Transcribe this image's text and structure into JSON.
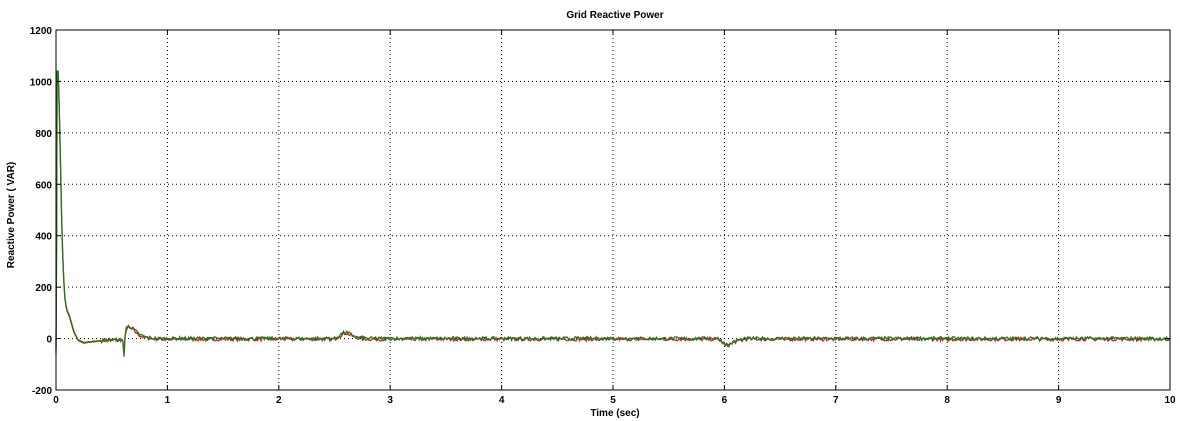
{
  "chart_data": {
    "type": "line",
    "title": "Grid Reactive Power",
    "xlabel": "Time (sec)",
    "ylabel": "Reactive Power ( VAR)",
    "xlim": [
      0,
      10
    ],
    "ylim": [
      -200,
      1200
    ],
    "xticks": [
      0,
      1,
      2,
      3,
      4,
      5,
      6,
      7,
      8,
      9,
      10
    ],
    "yticks": [
      -200,
      0,
      200,
      400,
      600,
      800,
      1000,
      1200
    ],
    "grid": true,
    "legend": "none",
    "colors": {
      "primary": "#d81c1c",
      "secondary": "#1f7a1f",
      "grid": "#000000"
    },
    "series": [
      {
        "x": [
          0,
          0.005,
          0.01,
          0.02,
          0.03,
          0.04,
          0.05,
          0.06,
          0.07,
          0.08,
          0.09,
          0.1,
          0.12,
          0.14,
          0.16,
          0.18,
          0.2,
          0.25,
          0.3,
          0.35,
          0.4,
          0.5,
          0.6,
          0.61,
          0.62,
          0.63,
          0.65,
          0.7,
          0.75,
          0.8,
          0.9,
          1.0,
          1.5,
          2.0,
          2.5,
          2.55,
          2.6,
          2.65,
          2.7,
          2.8,
          3.0,
          3.5,
          4.0,
          4.5,
          5.0,
          5.5,
          5.95,
          6.0,
          6.03,
          6.1,
          6.2,
          6.5,
          7.0,
          7.5,
          8.0,
          8.5,
          9.0,
          9.5,
          10.0
        ],
        "values": [
          -60,
          400,
          1040,
          1040,
          900,
          690,
          480,
          330,
          230,
          160,
          130,
          110,
          90,
          60,
          30,
          10,
          -5,
          -15,
          -12,
          -10,
          -8,
          -5,
          -5,
          -70,
          10,
          40,
          50,
          35,
          15,
          5,
          0,
          0,
          0,
          0,
          0,
          15,
          25,
          15,
          5,
          0,
          0,
          0,
          0,
          0,
          0,
          0,
          0,
          -20,
          -25,
          -10,
          0,
          0,
          0,
          0,
          0,
          0,
          0,
          0,
          0
        ]
      },
      {
        "x": [
          0,
          0.005,
          0.01,
          0.02,
          0.03,
          0.04,
          0.05,
          0.06,
          0.07,
          0.08,
          0.09,
          0.1,
          0.12,
          0.14,
          0.16,
          0.18,
          0.2,
          0.25,
          0.3,
          0.35,
          0.4,
          0.5,
          0.6,
          0.61,
          0.62,
          0.63,
          0.65,
          0.7,
          0.75,
          0.8,
          0.9,
          1.0,
          1.5,
          2.0,
          2.5,
          2.55,
          2.6,
          2.65,
          2.7,
          2.8,
          3.0,
          3.5,
          4.0,
          4.5,
          5.0,
          5.5,
          5.95,
          6.0,
          6.03,
          6.1,
          6.2,
          6.5,
          7.0,
          7.5,
          8.0,
          8.5,
          9.0,
          9.5,
          10.0
        ],
        "values": [
          -40,
          380,
          1020,
          1030,
          880,
          670,
          470,
          320,
          220,
          155,
          125,
          105,
          85,
          55,
          25,
          8,
          -8,
          -18,
          -14,
          -12,
          -9,
          -6,
          -6,
          -60,
          5,
          35,
          45,
          30,
          12,
          3,
          -2,
          -2,
          -2,
          -2,
          -2,
          12,
          22,
          12,
          3,
          -2,
          -2,
          -2,
          -2,
          -2,
          -2,
          -2,
          -2,
          -22,
          -27,
          -12,
          -2,
          -2,
          -2,
          -2,
          -2,
          -2,
          -2,
          -2,
          -2
        ]
      }
    ]
  }
}
